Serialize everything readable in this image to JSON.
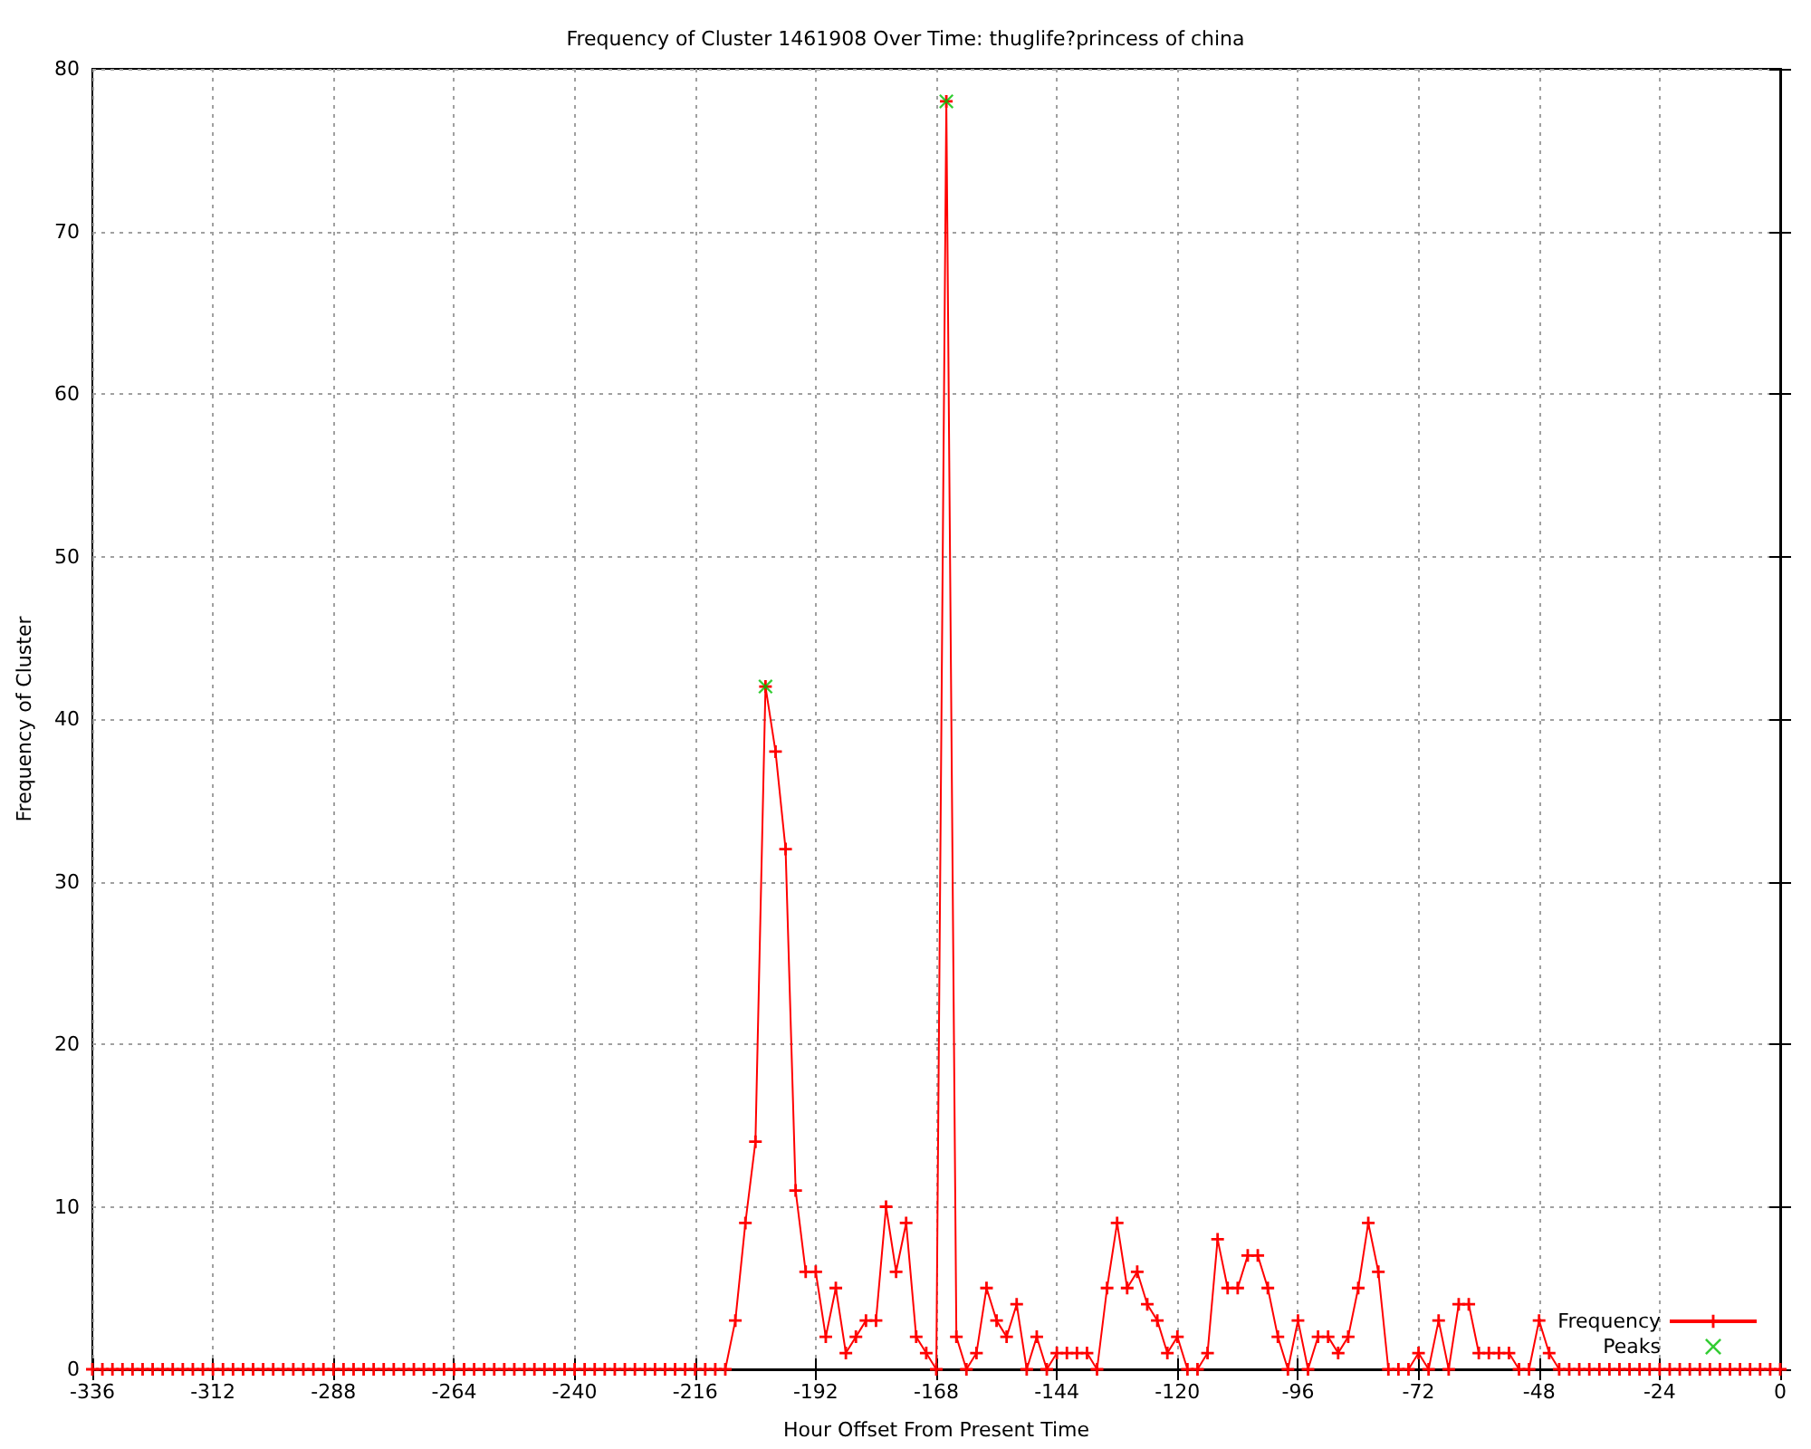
{
  "chart_data": {
    "type": "line",
    "title": "Frequency of Cluster 1461908 Over Time: thuglife?princess of china",
    "xlabel": "Hour Offset From Present Time",
    "ylabel": "Frequency of Cluster",
    "x": [
      -336,
      -334,
      -332,
      -330,
      -328,
      -326,
      -324,
      -322,
      -320,
      -318,
      -316,
      -314,
      -312,
      -310,
      -308,
      -306,
      -304,
      -302,
      -300,
      -298,
      -296,
      -294,
      -292,
      -290,
      -288,
      -286,
      -284,
      -282,
      -280,
      -278,
      -276,
      -274,
      -272,
      -270,
      -268,
      -266,
      -264,
      -262,
      -260,
      -258,
      -256,
      -254,
      -252,
      -250,
      -248,
      -246,
      -244,
      -242,
      -240,
      -238,
      -236,
      -234,
      -232,
      -230,
      -228,
      -226,
      -224,
      -222,
      -220,
      -218,
      -216,
      -214,
      -212,
      -210,
      -208,
      -206,
      -204,
      -202,
      -200,
      -198,
      -196,
      -194,
      -192,
      -190,
      -188,
      -186,
      -184,
      -182,
      -180,
      -178,
      -176,
      -174,
      -172,
      -170,
      -168,
      -166,
      -164,
      -162,
      -160,
      -158,
      -156,
      -154,
      -152,
      -150,
      -148,
      -146,
      -144,
      -142,
      -140,
      -138,
      -136,
      -134,
      -132,
      -130,
      -128,
      -126,
      -124,
      -122,
      -120,
      -118,
      -116,
      -114,
      -112,
      -110,
      -108,
      -106,
      -104,
      -102,
      -100,
      -98,
      -96,
      -94,
      -92,
      -90,
      -88,
      -86,
      -84,
      -82,
      -80,
      -78,
      -76,
      -74,
      -72,
      -70,
      -68,
      -66,
      -64,
      -62,
      -60,
      -58,
      -56,
      -54,
      -52,
      -50,
      -48,
      -46,
      -44,
      -42,
      -40,
      -38,
      -36,
      -34,
      -32,
      -30,
      -28,
      -26,
      -24,
      -22,
      -20,
      -18,
      -16,
      -14,
      -12,
      -10,
      -8,
      -6,
      -4,
      -2,
      0
    ],
    "series": [
      {
        "name": "Frequency",
        "color": "#ff0000",
        "values": [
          0,
          0,
          0,
          0,
          0,
          0,
          0,
          0,
          0,
          0,
          0,
          0,
          0,
          0,
          0,
          0,
          0,
          0,
          0,
          0,
          0,
          0,
          0,
          0,
          0,
          0,
          0,
          0,
          0,
          0,
          0,
          0,
          0,
          0,
          0,
          0,
          0,
          0,
          0,
          0,
          0,
          0,
          0,
          0,
          0,
          0,
          0,
          0,
          0,
          0,
          0,
          0,
          0,
          0,
          0,
          0,
          0,
          0,
          0,
          0,
          0,
          0,
          0,
          0,
          3,
          9,
          14,
          42,
          38,
          32,
          11,
          6,
          6,
          2,
          5,
          1,
          2,
          3,
          3,
          10,
          6,
          9,
          2,
          1,
          0,
          78,
          2,
          0,
          1,
          5,
          3,
          2,
          4,
          0,
          2,
          0,
          1,
          1,
          1,
          1,
          0,
          5,
          9,
          5,
          6,
          4,
          3,
          1,
          2,
          0,
          0,
          1,
          8,
          5,
          5,
          7,
          7,
          5,
          2,
          0,
          3,
          0,
          2,
          2,
          1,
          2,
          5,
          9,
          6,
          0,
          0,
          0,
          1,
          0,
          3,
          0,
          4,
          4,
          1,
          1,
          1,
          1,
          0,
          0,
          3,
          1,
          0,
          0,
          0,
          0,
          0,
          0,
          0,
          0,
          0,
          0,
          0,
          0,
          0,
          0,
          0,
          0,
          0,
          0,
          0,
          0,
          0,
          0,
          0
        ]
      },
      {
        "name": "Peaks",
        "type": "scatter",
        "color": "#00c000",
        "x": [
          -202,
          -166
        ],
        "values": [
          42,
          78
        ]
      }
    ],
    "xlim": [
      -336,
      0
    ],
    "xticks": [
      -336,
      -312,
      -288,
      -264,
      -240,
      -216,
      -192,
      -168,
      -144,
      -120,
      -96,
      -72,
      -48,
      -24,
      0
    ],
    "ylim": [
      0,
      80
    ],
    "yticks": [
      0,
      10,
      20,
      30,
      40,
      50,
      60,
      70,
      80
    ],
    "grid": true,
    "legend": "bottom right",
    "marker": "cross"
  }
}
